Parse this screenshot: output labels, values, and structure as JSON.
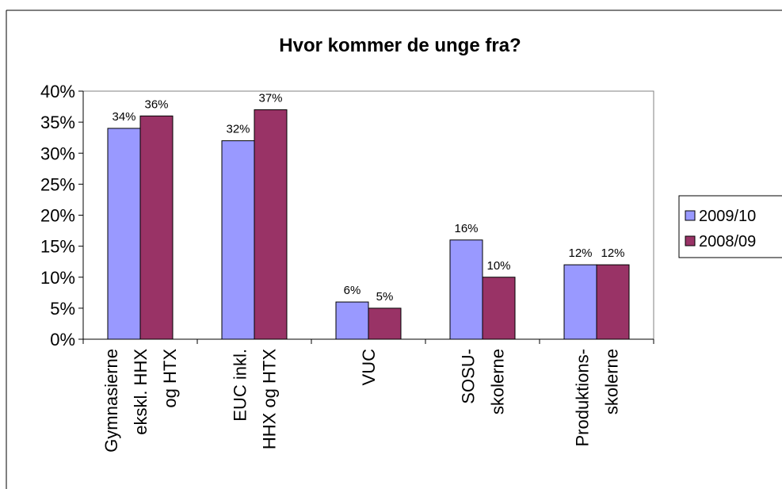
{
  "chart_data": {
    "type": "bar",
    "title": "Hvor kommer de unge fra?",
    "categories": [
      "Gymnasierne\nekskl. HHX\nog HTX",
      "EUC inkl.\nHHX og HTX",
      "VUC",
      "SOSU-\nskolerne",
      "Produktions-\nskolerne"
    ],
    "series": [
      {
        "name": "2009/10",
        "color": "#9999ff",
        "values": [
          34,
          32,
          6,
          16,
          12
        ],
        "value_labels": [
          "34%",
          "32%",
          "6%",
          "16%",
          "12%"
        ]
      },
      {
        "name": "2008/09",
        "color": "#993366",
        "values": [
          36,
          37,
          5,
          10,
          12
        ],
        "value_labels": [
          "36%",
          "37%",
          "5%",
          "10%",
          "12%"
        ]
      }
    ],
    "ylim": [
      0,
      40
    ],
    "yticks": [
      {
        "value": 0,
        "label": "0%"
      },
      {
        "value": 5,
        "label": "5%"
      },
      {
        "value": 10,
        "label": "10%"
      },
      {
        "value": 15,
        "label": "15%"
      },
      {
        "value": 20,
        "label": "20%"
      },
      {
        "value": 25,
        "label": "25%"
      },
      {
        "value": 30,
        "label": "30%"
      },
      {
        "value": 35,
        "label": "35%"
      },
      {
        "value": 40,
        "label": "40%"
      }
    ],
    "legend": "right"
  }
}
